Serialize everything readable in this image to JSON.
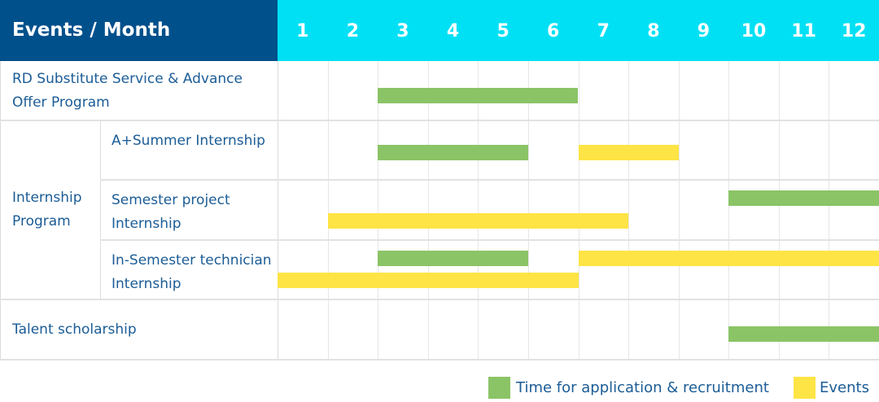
{
  "colors": {
    "header_dark": "#00508C",
    "header_light": "#00E0F4",
    "application": "#8BC466",
    "events": "#FFE445",
    "text": "#1B5C96"
  },
  "chart_data": {
    "type": "gantt",
    "corner_label": "Events / Month",
    "months": [
      "1",
      "2",
      "3",
      "4",
      "5",
      "6",
      "7",
      "8",
      "9",
      "10",
      "11",
      "12"
    ],
    "groups": [
      {
        "label": "RD Substitute Service & Advance Offer Program",
        "rows": [
          {
            "label": "",
            "bars": [
              {
                "series": "application",
                "start": 3,
                "end": 6
              }
            ]
          }
        ]
      },
      {
        "label": "Internship Program",
        "rows": [
          {
            "label": "A+Summer Internship",
            "bars": [
              {
                "series": "application",
                "start": 3,
                "end": 5
              },
              {
                "series": "events",
                "start": 7,
                "end": 8
              }
            ]
          },
          {
            "label": "Semester project Internship",
            "bars": [
              {
                "series": "application",
                "start": 10,
                "end": 12
              },
              {
                "series": "events",
                "start": 2,
                "end": 7
              }
            ]
          },
          {
            "label": "In-Semester technician Internship",
            "bars": [
              {
                "series": "application",
                "start": 3,
                "end": 5
              },
              {
                "series": "events",
                "start": 7,
                "end": 12
              },
              {
                "series": "events",
                "start": 1,
                "end": 6
              }
            ]
          }
        ]
      },
      {
        "label": "Talent scholarship",
        "rows": [
          {
            "label": "",
            "bars": [
              {
                "series": "application",
                "start": 10,
                "end": 12
              }
            ]
          }
        ]
      }
    ],
    "legend": [
      {
        "key": "application",
        "label": "Time for application & recruitment"
      },
      {
        "key": "events",
        "label": "Events"
      }
    ],
    "legend_position": "bottom-right"
  }
}
